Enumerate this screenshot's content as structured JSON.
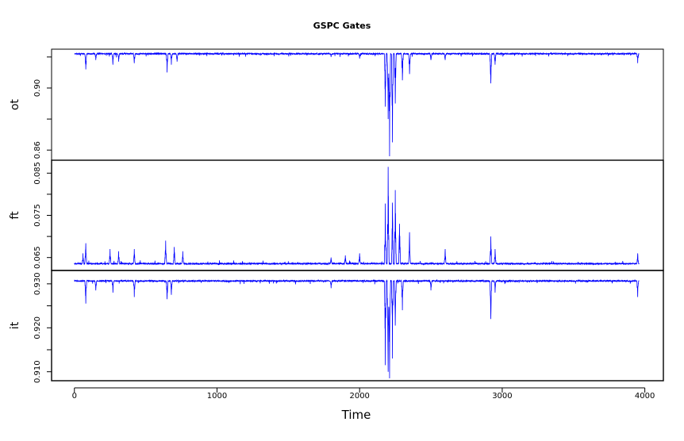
{
  "chart_data": {
    "type": "line",
    "title": "GSPC Gates",
    "xlabel": "Time",
    "xlim": [
      -160,
      4130
    ],
    "x_ticks": [
      0,
      1000,
      2000,
      3000,
      4000
    ],
    "n_points": 3960,
    "color": "#0000ff",
    "panels": [
      {
        "ylabel": "ot",
        "ylim": [
          0.855,
          0.9235
        ],
        "y_ticks": [
          0.86,
          0.88,
          0.9,
          0.92
        ],
        "y_tick_labels": [
          "0.86",
          "",
          "0.90",
          ""
        ],
        "baseline": 0.9225,
        "spike_dir": -1,
        "spikes": [
          [
            80,
            0.912
          ],
          [
            150,
            0.918
          ],
          [
            270,
            0.915
          ],
          [
            310,
            0.917
          ],
          [
            420,
            0.916
          ],
          [
            650,
            0.91
          ],
          [
            680,
            0.915
          ],
          [
            720,
            0.917
          ],
          [
            1800,
            0.92
          ],
          [
            2000,
            0.919
          ],
          [
            2180,
            0.888
          ],
          [
            2200,
            0.88
          ],
          [
            2210,
            0.856
          ],
          [
            2230,
            0.865
          ],
          [
            2250,
            0.89
          ],
          [
            2300,
            0.905
          ],
          [
            2350,
            0.909
          ],
          [
            2500,
            0.918
          ],
          [
            2600,
            0.918
          ],
          [
            2920,
            0.903
          ],
          [
            2950,
            0.915
          ],
          [
            3950,
            0.916
          ]
        ]
      },
      {
        "ylabel": "ft",
        "ylim": [
          0.0625,
          0.0875
        ],
        "y_ticks": [
          0.065,
          0.07,
          0.075,
          0.08,
          0.085
        ],
        "y_tick_labels": [
          "0.065",
          "",
          "0.075",
          "",
          "0.085"
        ],
        "baseline": 0.0634,
        "spike_dir": 1,
        "spikes": [
          [
            60,
            0.066
          ],
          [
            80,
            0.0684
          ],
          [
            250,
            0.067
          ],
          [
            310,
            0.0665
          ],
          [
            420,
            0.067
          ],
          [
            640,
            0.069
          ],
          [
            700,
            0.0675
          ],
          [
            760,
            0.0665
          ],
          [
            1800,
            0.065
          ],
          [
            1900,
            0.0655
          ],
          [
            2000,
            0.066
          ],
          [
            2180,
            0.0778
          ],
          [
            2200,
            0.0865
          ],
          [
            2230,
            0.078
          ],
          [
            2250,
            0.081
          ],
          [
            2280,
            0.073
          ],
          [
            2350,
            0.071
          ],
          [
            2600,
            0.067
          ],
          [
            2920,
            0.07
          ],
          [
            2950,
            0.067
          ],
          [
            3950,
            0.066
          ]
        ]
      },
      {
        "ylabel": "it",
        "ylim": [
          0.9085,
          0.9325
        ],
        "y_ticks": [
          0.91,
          0.915,
          0.92,
          0.925,
          0.93
        ],
        "y_tick_labels": [
          "0.910",
          "",
          "0.920",
          "",
          "0.930"
        ],
        "baseline": 0.9308,
        "spike_dir": -1,
        "spikes": [
          [
            80,
            0.9255
          ],
          [
            150,
            0.9285
          ],
          [
            270,
            0.928
          ],
          [
            420,
            0.927
          ],
          [
            650,
            0.9265
          ],
          [
            680,
            0.9275
          ],
          [
            1800,
            0.929
          ],
          [
            2180,
            0.9115
          ],
          [
            2200,
            0.91
          ],
          [
            2210,
            0.9085
          ],
          [
            2230,
            0.913
          ],
          [
            2250,
            0.9205
          ],
          [
            2300,
            0.924
          ],
          [
            2500,
            0.9285
          ],
          [
            2920,
            0.922
          ],
          [
            2950,
            0.928
          ],
          [
            3950,
            0.927
          ]
        ]
      }
    ]
  }
}
